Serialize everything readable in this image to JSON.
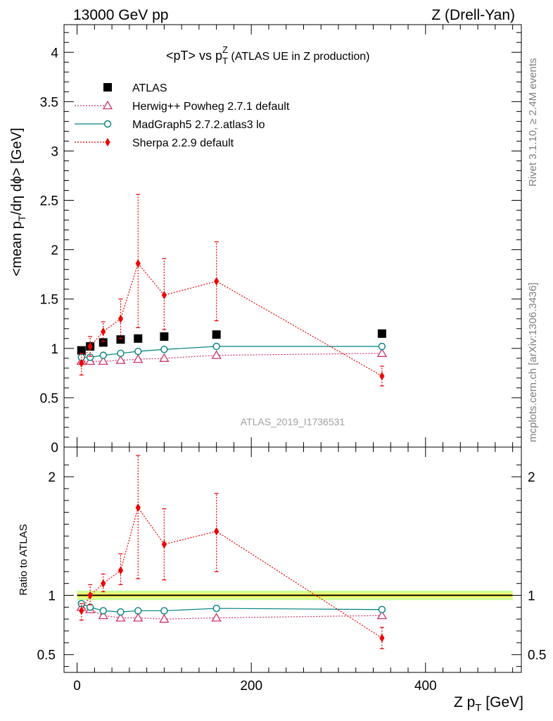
{
  "header": {
    "left": "13000 GeV pp",
    "right": "Z (Drell-Yan)"
  },
  "side_labels": {
    "rivet": "Rivet 3.1.10, ≥ 2.4M events",
    "mcplots": "mcplots.cern.ch [arXiv:1306.3436]"
  },
  "watermark": "ATLAS_2019_I1736531",
  "colors": {
    "atlas": "#000000",
    "herwig": "#cc3366",
    "madgraph": "#008080",
    "sherpa": "#ee0000",
    "band_inner": "#ffff66",
    "band_outer": "#ccff99"
  },
  "chart_data": [
    {
      "type": "scatter",
      "panel": "main",
      "title": "<pT> vs p_T^Z (ATLAS UE in Z production)",
      "title_parts": {
        "main": "<pT> vs p",
        "sub": "T",
        "sup": "Z",
        "suffix": " (ATLAS UE in Z production)"
      },
      "ylabel": "<mean p_T/dη dϕ> [GeV]",
      "ylabel_parts": {
        "pre": "<mean p",
        "sub": "T",
        "post": "/dη dϕ> [GeV]"
      },
      "xlim": [
        -15,
        510
      ],
      "ylim": [
        0,
        4.28
      ],
      "y_ticks": [
        0,
        0.5,
        1,
        1.5,
        2,
        2.5,
        3,
        3.5,
        4
      ],
      "y_tick_labels": [
        "0",
        "0.5",
        "1",
        "1.5",
        "2",
        "2.5",
        "3",
        "3.5",
        "4"
      ],
      "legend": {
        "placement": "top-left",
        "entries": [
          "ATLAS",
          "Herwig++ Powheg 2.7.1 default",
          "MadGraph5 2.7.2.atlas3 lo",
          "Sherpa 2.2.9 default"
        ]
      },
      "x": [
        5,
        15,
        30,
        50,
        70,
        100,
        160,
        350
      ],
      "series": [
        {
          "name": "ATLAS",
          "marker": "square",
          "values": [
            0.98,
            1.02,
            1.06,
            1.09,
            1.1,
            1.12,
            1.14,
            1.15
          ]
        },
        {
          "name": "Herwig++ Powheg 2.7.1 default",
          "marker": "triangle-open",
          "line": "dotted",
          "values": [
            0.87,
            0.87,
            0.87,
            0.88,
            0.89,
            0.9,
            0.93,
            0.95
          ]
        },
        {
          "name": "MadGraph5 2.7.2.atlas3 lo",
          "marker": "circle-open",
          "line": "solid",
          "values": [
            0.91,
            0.91,
            0.93,
            0.95,
            0.97,
            0.99,
            1.02,
            1.02
          ]
        },
        {
          "name": "Sherpa 2.2.9 default",
          "marker": "diamond",
          "line": "dotted",
          "values": [
            0.85,
            1.02,
            1.17,
            1.3,
            1.86,
            1.54,
            1.68,
            0.72
          ],
          "err_low": [
            0.12,
            0.1,
            0.1,
            0.2,
            0.65,
            0.35,
            0.4,
            0.1
          ],
          "err_high": [
            0.1,
            0.1,
            0.1,
            0.2,
            0.7,
            0.37,
            0.4,
            0.1
          ]
        }
      ]
    },
    {
      "type": "scatter",
      "panel": "ratio",
      "ylabel": "Ratio to ATLAS",
      "xlabel": "Z p_T [GeV]",
      "xlabel_parts": {
        "pre": "Z p",
        "sub": "T",
        "post": " [GeV]"
      },
      "xlim": [
        -15,
        510
      ],
      "x_ticks": [
        0,
        200,
        400
      ],
      "x_tick_labels": [
        "0",
        "200",
        "400"
      ],
      "ylim": [
        0.35,
        2.25
      ],
      "y_ticks": [
        0.5,
        1,
        2
      ],
      "y_tick_labels": [
        "0.5",
        "1",
        "2"
      ],
      "band_inner": 0.02,
      "band_outer": 0.04,
      "x": [
        5,
        15,
        30,
        50,
        70,
        100,
        160,
        350
      ],
      "series": [
        {
          "name": "Herwig++ Powheg 2.7.1 default",
          "marker": "triangle-open",
          "line": "dotted",
          "values": [
            0.9,
            0.88,
            0.83,
            0.81,
            0.81,
            0.8,
            0.81,
            0.83
          ]
        },
        {
          "name": "MadGraph5 2.7.2.atlas3 lo",
          "marker": "circle-open",
          "line": "solid",
          "values": [
            0.93,
            0.9,
            0.87,
            0.86,
            0.87,
            0.87,
            0.89,
            0.88
          ]
        },
        {
          "name": "Sherpa 2.2.9 default",
          "marker": "diamond",
          "line": "dotted",
          "values": [
            0.87,
            1.0,
            1.1,
            1.21,
            1.74,
            1.43,
            1.54,
            0.64
          ],
          "err_low": [
            0.08,
            0.08,
            0.07,
            0.12,
            0.6,
            0.3,
            0.34,
            0.09
          ],
          "err_high": [
            0.06,
            0.09,
            0.08,
            0.14,
            0.44,
            0.3,
            0.32,
            0.09
          ]
        }
      ]
    }
  ]
}
